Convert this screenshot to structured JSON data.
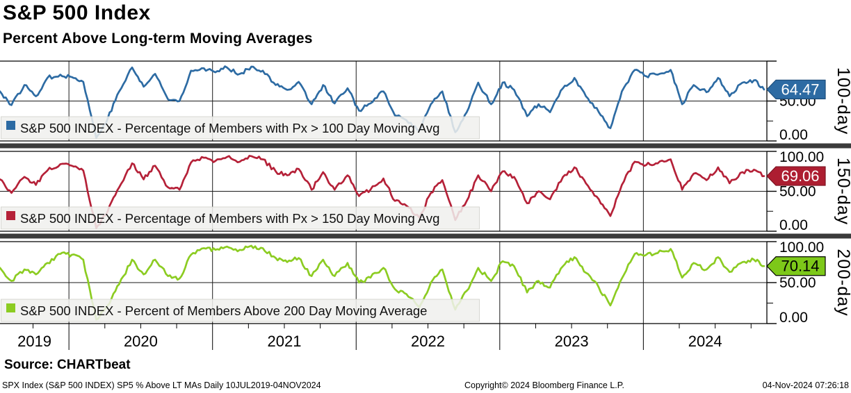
{
  "header": {
    "title": "S&P 500 Index",
    "subtitle": "Percent Above Long-term Moving Averages"
  },
  "footer": {
    "source": "Source: CHARTbeat",
    "ticker_info": "SPX Index (S&P 500 INDEX) SP5 % Above LT MAs  Daily 10JUL2019-04NOV2024",
    "copyright": "Copyright© 2024 Bloomberg Finance L.P.",
    "timestamp": "04-Nov-2024 07:26:18"
  },
  "x_axis": {
    "tick_labels": [
      "2019",
      "2020",
      "2021",
      "2022",
      "2023",
      "2024"
    ],
    "range_start": "10JUL2019",
    "range_end": "04NOV2024"
  },
  "colors": {
    "frame": "#000000",
    "divider": "#3b3b3b",
    "legend_bg": "#f0f0ee",
    "blue_line": "#2d6ba3",
    "red_line": "#b52138",
    "green_line": "#8ccc22",
    "blue_badge": "#2d6ba3",
    "red_badge": "#ad1e31",
    "green_badge": "#7dc819"
  },
  "chart_data": [
    {
      "type": "line",
      "legend": "S&P 500 INDEX - Percentage of Members with Px > 100 Day Moving Avg",
      "right_axis_label": "100-day",
      "last_value": 64.47,
      "last_value_label": "64.47",
      "line_color": "#2d6ba3",
      "badge_color": "#2d6ba3",
      "badge_border": "#1c4e7c",
      "badge_text_color": "#ffffff",
      "ylim": [
        0,
        100
      ],
      "yticks": [
        {
          "value": 100,
          "label": ""
        },
        {
          "value": 50,
          "label": "50.00"
        },
        {
          "value": 25,
          "label": ""
        },
        {
          "value": 0,
          "label": "0.00"
        }
      ],
      "x": [
        2019.52,
        2019.6,
        2019.69,
        2019.77,
        2019.85,
        2019.94,
        2020.02,
        2020.1,
        2020.19,
        2020.27,
        2020.35,
        2020.44,
        2020.52,
        2020.6,
        2020.69,
        2020.77,
        2020.85,
        2020.94,
        2021.02,
        2021.1,
        2021.19,
        2021.27,
        2021.35,
        2021.44,
        2021.52,
        2021.6,
        2021.69,
        2021.77,
        2021.85,
        2021.94,
        2022.02,
        2022.1,
        2022.19,
        2022.27,
        2022.35,
        2022.44,
        2022.52,
        2022.6,
        2022.69,
        2022.77,
        2022.85,
        2022.94,
        2023.02,
        2023.1,
        2023.19,
        2023.27,
        2023.35,
        2023.44,
        2023.52,
        2023.6,
        2023.69,
        2023.77,
        2023.85,
        2023.94,
        2024.02,
        2024.1,
        2024.19,
        2024.27,
        2024.35,
        2024.44,
        2024.52,
        2024.6,
        2024.69,
        2024.77,
        2024.84
      ],
      "values": [
        62,
        45,
        70,
        56,
        79,
        83,
        80,
        74,
        4,
        28,
        62,
        92,
        68,
        84,
        52,
        50,
        88,
        91,
        86,
        92,
        84,
        93,
        88,
        70,
        64,
        74,
        46,
        70,
        47,
        66,
        38,
        47,
        62,
        32,
        26,
        13,
        46,
        62,
        11,
        36,
        73,
        46,
        73,
        64,
        31,
        46,
        36,
        66,
        79,
        56,
        36,
        16,
        62,
        89,
        81,
        83,
        89,
        46,
        70,
        61,
        79,
        56,
        73,
        76,
        64.47
      ]
    },
    {
      "type": "line",
      "legend": "S&P 500 INDEX - Percentage of Members with Px > 150 Day Moving Avg",
      "right_axis_label": "150-day",
      "last_value": 69.06,
      "last_value_label": "69.06",
      "line_color": "#b52138",
      "badge_color": "#ad1e31",
      "badge_border": "#7d1423",
      "badge_text_color": "#ffffff",
      "ylim": [
        0,
        100
      ],
      "yticks": [
        {
          "value": 100,
          "label": "100.00"
        },
        {
          "value": 50,
          "label": "50.00"
        },
        {
          "value": 25,
          "label": ""
        },
        {
          "value": 0,
          "label": "0.00"
        }
      ],
      "x": [
        2019.52,
        2019.6,
        2019.69,
        2019.77,
        2019.85,
        2019.94,
        2020.02,
        2020.1,
        2020.19,
        2020.27,
        2020.35,
        2020.44,
        2020.52,
        2020.6,
        2020.69,
        2020.77,
        2020.85,
        2020.94,
        2021.02,
        2021.1,
        2021.19,
        2021.27,
        2021.35,
        2021.44,
        2021.52,
        2021.6,
        2021.69,
        2021.77,
        2021.85,
        2021.94,
        2022.02,
        2022.1,
        2022.19,
        2022.27,
        2022.35,
        2022.44,
        2022.52,
        2022.6,
        2022.69,
        2022.77,
        2022.85,
        2022.94,
        2023.02,
        2023.1,
        2023.19,
        2023.27,
        2023.35,
        2023.44,
        2023.52,
        2023.6,
        2023.69,
        2023.77,
        2023.85,
        2023.94,
        2024.02,
        2024.1,
        2024.19,
        2024.27,
        2024.35,
        2024.44,
        2024.52,
        2024.6,
        2024.69,
        2024.77,
        2024.84
      ],
      "values": [
        65,
        48,
        68,
        58,
        76,
        84,
        82,
        76,
        4,
        25,
        55,
        85,
        65,
        82,
        55,
        52,
        86,
        92,
        88,
        93,
        87,
        94,
        90,
        75,
        70,
        78,
        52,
        74,
        52,
        70,
        44,
        52,
        66,
        38,
        32,
        17,
        48,
        64,
        14,
        38,
        70,
        50,
        75,
        68,
        35,
        50,
        40,
        68,
        80,
        60,
        40,
        19,
        58,
        87,
        83,
        85,
        90,
        52,
        72,
        64,
        80,
        60,
        74,
        77,
        69.06
      ]
    },
    {
      "type": "line",
      "legend": "S&P 500 INDEX - Percent of Members Above 200 Day Moving Average",
      "right_axis_label": "200-day",
      "last_value": 70.14,
      "last_value_label": "70.14",
      "line_color": "#8ccc22",
      "badge_color": "#7dc819",
      "badge_border": "#000000",
      "badge_text_color": "#000000",
      "ylim": [
        0,
        100
      ],
      "yticks": [
        {
          "value": 100,
          "label": "100.00"
        },
        {
          "value": 50,
          "label": "50.00"
        },
        {
          "value": 25,
          "label": ""
        },
        {
          "value": 0,
          "label": "0.00"
        }
      ],
      "x": [
        2019.52,
        2019.6,
        2019.69,
        2019.77,
        2019.85,
        2019.94,
        2020.02,
        2020.1,
        2020.19,
        2020.27,
        2020.35,
        2020.44,
        2020.52,
        2020.6,
        2020.69,
        2020.77,
        2020.85,
        2020.94,
        2021.02,
        2021.1,
        2021.19,
        2021.27,
        2021.35,
        2021.44,
        2021.52,
        2021.6,
        2021.69,
        2021.77,
        2021.85,
        2021.94,
        2022.02,
        2022.1,
        2022.19,
        2022.27,
        2022.35,
        2022.44,
        2022.52,
        2022.6,
        2022.69,
        2022.77,
        2022.85,
        2022.94,
        2023.02,
        2023.1,
        2023.19,
        2023.27,
        2023.35,
        2023.44,
        2023.52,
        2023.6,
        2023.69,
        2023.77,
        2023.85,
        2023.94,
        2024.02,
        2024.1,
        2024.19,
        2024.27,
        2024.35,
        2024.44,
        2024.52,
        2024.6,
        2024.69,
        2024.77,
        2024.84
      ],
      "values": [
        68,
        52,
        66,
        60,
        74,
        85,
        84,
        78,
        5,
        22,
        48,
        78,
        60,
        78,
        58,
        55,
        84,
        92,
        90,
        94,
        90,
        95,
        92,
        80,
        75,
        80,
        58,
        78,
        58,
        74,
        50,
        56,
        68,
        42,
        36,
        20,
        50,
        66,
        17,
        40,
        68,
        52,
        76,
        70,
        38,
        52,
        44,
        70,
        81,
        62,
        44,
        22,
        55,
        85,
        84,
        86,
        91,
        56,
        74,
        66,
        81,
        63,
        75,
        78,
        70.14
      ]
    }
  ]
}
